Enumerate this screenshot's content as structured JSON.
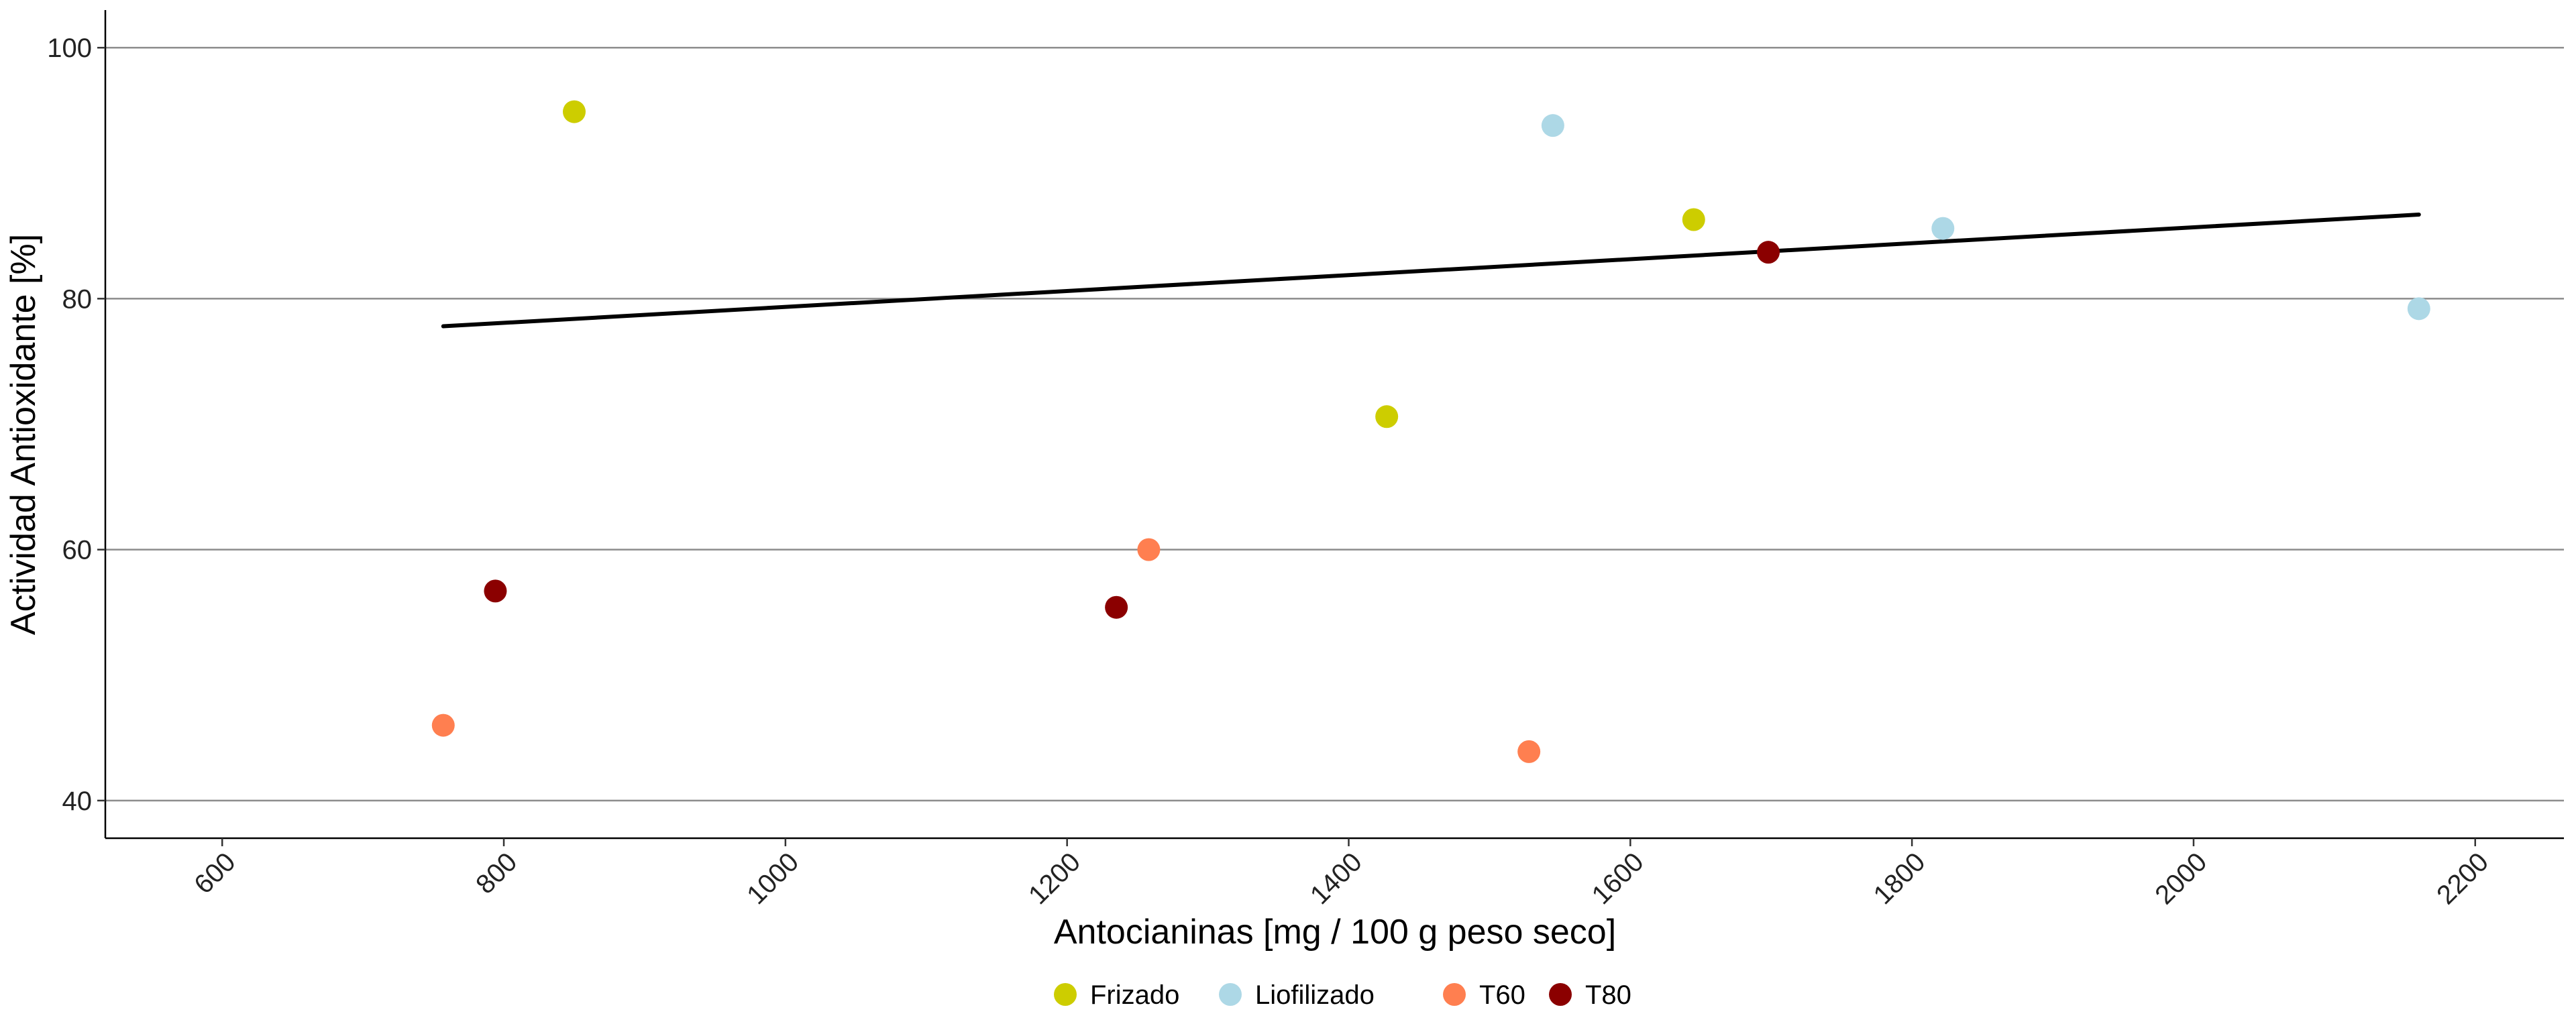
{
  "chart_data": {
    "type": "scatter",
    "xlabel": "Antocianinas [mg / 100 g peso seco]",
    "ylabel": "Actividad Antioxidante [%]",
    "xlim": [
      517,
      2263
    ],
    "ylim": [
      37,
      103
    ],
    "x_ticks": [
      600,
      800,
      1000,
      1200,
      1400,
      1600,
      1800,
      2000,
      2200
    ],
    "y_ticks": [
      40,
      60,
      80,
      100
    ],
    "x_tick_labels": [
      "600",
      "800",
      "1000",
      "1200",
      "1400",
      "1600",
      "1800",
      "2000",
      "2200"
    ],
    "y_tick_labels": [
      "40",
      "60",
      "80",
      "100"
    ],
    "grid": "horizontal major",
    "legend_position": "bottom",
    "series": [
      {
        "name": "Frizado",
        "color": "#CDCD00",
        "points": [
          {
            "x": 850,
            "y": 94.9
          },
          {
            "x": 1427,
            "y": 70.6
          },
          {
            "x": 1645,
            "y": 86.3
          }
        ]
      },
      {
        "name": "Liofilizado",
        "color": "#ADD8E6",
        "points": [
          {
            "x": 1545,
            "y": 93.8
          },
          {
            "x": 1822,
            "y": 85.6
          },
          {
            "x": 2160,
            "y": 79.2
          }
        ]
      },
      {
        "name": "T60",
        "color": "#FF7F50",
        "points": [
          {
            "x": 757,
            "y": 46.0
          },
          {
            "x": 1258,
            "y": 60.0
          },
          {
            "x": 1528,
            "y": 43.9
          }
        ]
      },
      {
        "name": "T80",
        "color": "#8B0000",
        "points": [
          {
            "x": 794,
            "y": 56.7
          },
          {
            "x": 1235,
            "y": 55.4
          },
          {
            "x": 1698,
            "y": 83.7
          }
        ]
      }
    ],
    "trend_line": {
      "color": "#000000",
      "x": [
        757,
        2160
      ],
      "y": [
        77.8,
        86.7
      ]
    }
  }
}
